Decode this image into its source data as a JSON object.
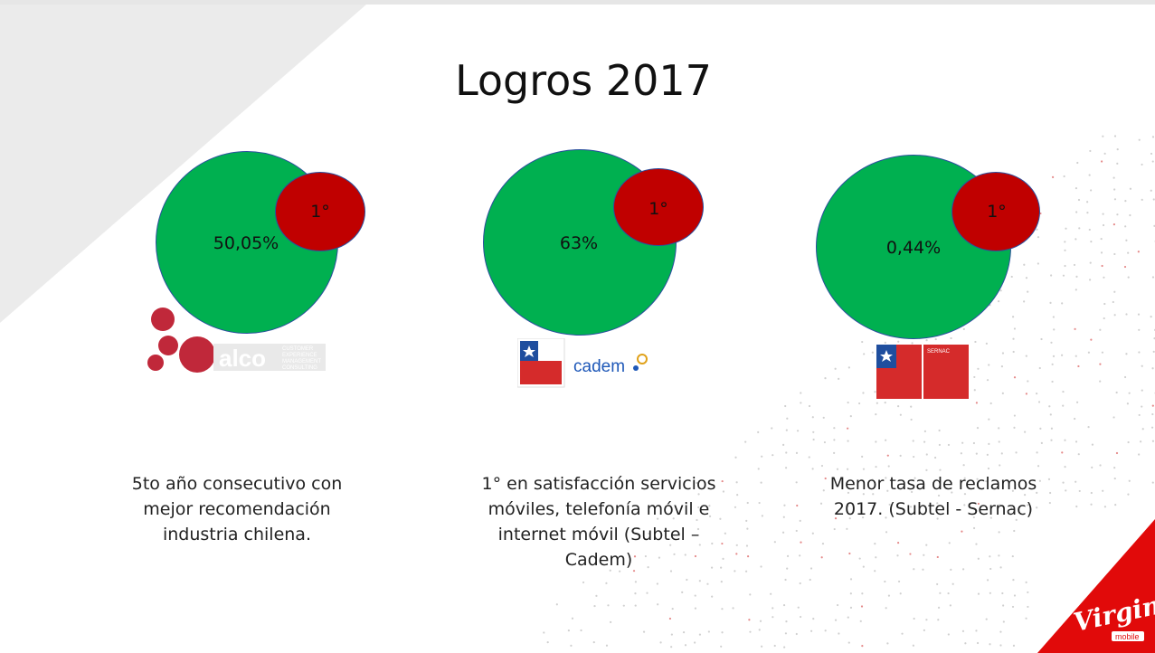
{
  "title": "Logros 2017",
  "colors": {
    "green": "#00b050",
    "red": "#c00000",
    "accent": "#e10a0a"
  },
  "achievements": [
    {
      "value": "50,05%",
      "rank": "1°",
      "description_lines": [
        "5to año consecutivo con",
        "mejor recomendación",
        "industria chilena."
      ],
      "logo": {
        "text": "alco",
        "subtext": [
          "CUSTOMER",
          "EXPERIENCE",
          "MANAGEMENT",
          "CONSULTING"
        ]
      }
    },
    {
      "value": "63%",
      "rank": "1°",
      "description_lines": [
        "1° en satisfacción servicios",
        "móviles, telefonía móvil e",
        "internet móvil  (Subtel –",
        "Cadem)"
      ],
      "logo": {
        "text": "cadem"
      }
    },
    {
      "value": "0,44%",
      "rank": "1°",
      "description_lines": [
        "Menor tasa de reclamos",
        "2017. (Subtel - Sernac)"
      ],
      "logo": {
        "text": "SERNAC"
      }
    }
  ],
  "brand": {
    "name": "Virgin",
    "sub": "mobile"
  }
}
